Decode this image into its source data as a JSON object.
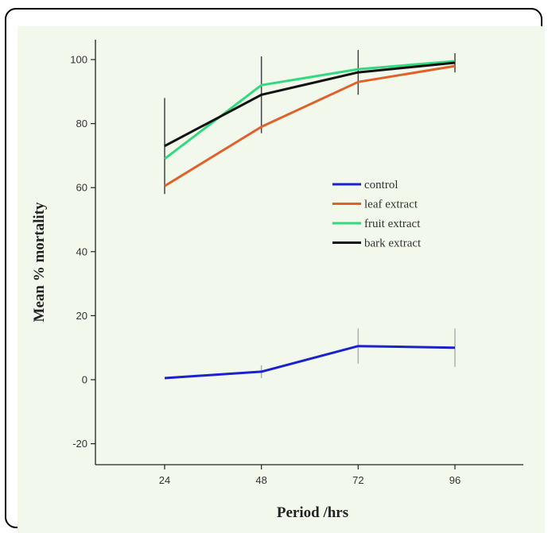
{
  "chart_data": {
    "type": "line",
    "xlabel": "Period /hrs",
    "ylabel": "Mean % mortality",
    "x": [
      24,
      48,
      72,
      96
    ],
    "x_ticks": [
      "24",
      "48",
      "72",
      "96"
    ],
    "y_ticks": [
      "-20",
      "0",
      "20",
      "40",
      "60",
      "80",
      "100"
    ],
    "ylim": [
      -27,
      106
    ],
    "xlim": [
      10,
      120
    ],
    "grid": false,
    "legend_position": "center-right",
    "series": [
      {
        "name": "control",
        "color": "#1a22cc",
        "values": [
          0.5,
          2.5,
          10.5,
          10
        ],
        "errors": [
          null,
          2,
          5.5,
          6
        ],
        "error_color": "#b0b0b0"
      },
      {
        "name": "leaf extract",
        "color": "#e0612a",
        "values": [
          60.5,
          79,
          93,
          98
        ]
      },
      {
        "name": "fruit extract",
        "color": "#33d980",
        "values": [
          69,
          92,
          97,
          99.5
        ]
      },
      {
        "name": "bark extract",
        "color": "#111111",
        "values": [
          73,
          89,
          96,
          99
        ],
        "errors": [
          15,
          12,
          7,
          3
        ],
        "error_color": "#444444"
      }
    ]
  }
}
